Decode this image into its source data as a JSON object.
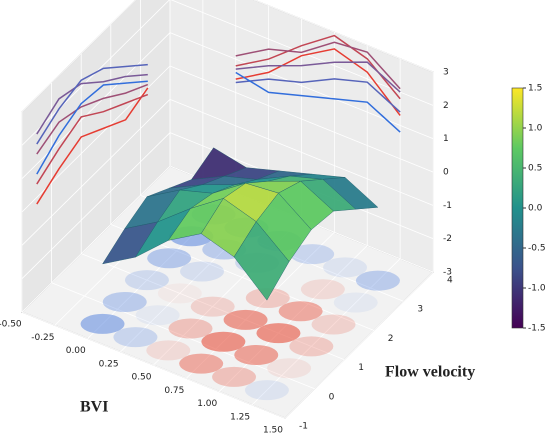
{
  "chart_data": {
    "type": "surface3d",
    "xlabel": "BVI",
    "ylabel": "Flow velocity",
    "xlim": [
      -0.5,
      1.5
    ],
    "xticks": [
      {
        "value": -0.5,
        "label": "-0.50"
      },
      {
        "value": -0.25,
        "label": "-0.25"
      },
      {
        "value": 0,
        "label": "0.00"
      },
      {
        "value": 0.25,
        "label": "0.25"
      },
      {
        "value": 0.5,
        "label": "0.50"
      },
      {
        "value": 0.75,
        "label": "0.75"
      },
      {
        "value": 1,
        "label": "1.00"
      },
      {
        "value": 1.25,
        "label": "1.25"
      },
      {
        "value": 1.5,
        "label": "1.50"
      }
    ],
    "ylim": [
      -1,
      4
    ],
    "yticks": [
      -1,
      0,
      1,
      2,
      3,
      4
    ],
    "zlim": [
      -3,
      3
    ],
    "zticks": [
      -3,
      -2,
      -1,
      0,
      1,
      2,
      3
    ],
    "x": [
      0,
      0.25,
      0.5,
      0.75,
      1,
      1.25
    ],
    "y": [
      -0.5,
      0.25,
      1,
      1.75,
      2.5,
      3.25
    ],
    "z": [
      [
        -1.2,
        -0.6,
        0.3,
        0.9,
        0.6,
        -0.3
      ],
      [
        -0.8,
        -0.2,
        0.6,
        1.3,
        1.0,
        0.2
      ],
      [
        -0.5,
        0.1,
        0.4,
        1.1,
        1.2,
        0.5
      ],
      [
        -0.9,
        -0.4,
        0.0,
        0.5,
        0.9,
        0.4
      ],
      [
        -1.3,
        -0.8,
        -0.5,
        0.0,
        0.3,
        -0.2
      ],
      [
        -1.0,
        -1.2,
        -0.9,
        -0.6,
        -0.3,
        -0.8
      ]
    ],
    "colorbar": {
      "lim": [
        -1.5,
        1.5
      ],
      "ticks": [
        -1.5,
        {
          "value": -1,
          "label": "-1.0"
        },
        -0.5,
        {
          "value": 0,
          "label": "0.0"
        },
        0.5,
        {
          "value": 1,
          "label": "1.0"
        },
        1.5
      ],
      "colormap": "viridis"
    }
  }
}
